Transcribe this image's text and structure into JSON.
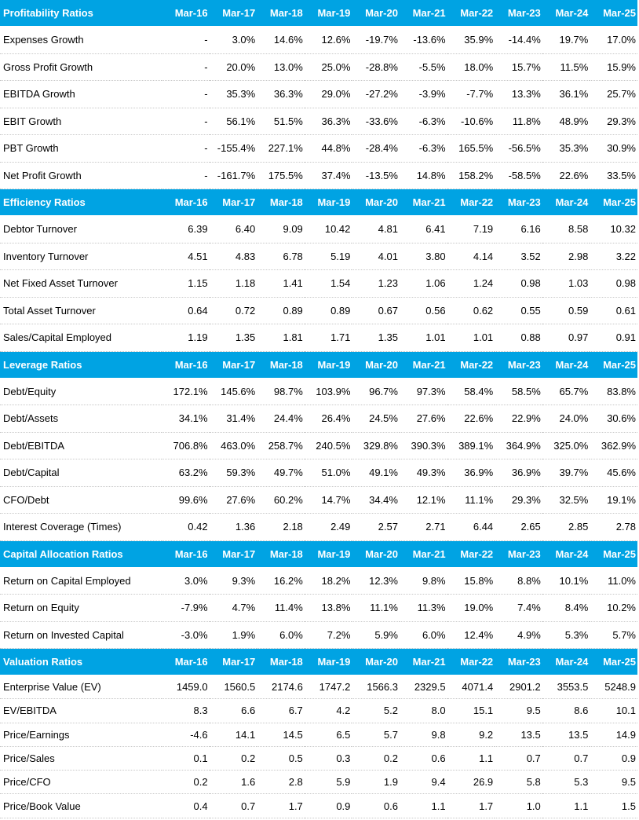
{
  "periods": [
    "Mar-16",
    "Mar-17",
    "Mar-18",
    "Mar-19",
    "Mar-20",
    "Mar-21",
    "Mar-22",
    "Mar-23",
    "Mar-24",
    "Mar-25"
  ],
  "sections": [
    {
      "key": "profitability",
      "title": "Profitability Ratios",
      "row_height": 34.5,
      "rows": [
        {
          "label": "Expenses Growth",
          "values": [
            "-",
            "3.0%",
            "14.6%",
            "12.6%",
            "-19.7%",
            "-13.6%",
            "35.9%",
            "-14.4%",
            "19.7%",
            "17.0%"
          ]
        },
        {
          "label": "Gross Profit Growth",
          "values": [
            "-",
            "20.0%",
            "13.0%",
            "25.0%",
            "-28.8%",
            "-5.5%",
            "18.0%",
            "15.7%",
            "11.5%",
            "15.9%"
          ]
        },
        {
          "label": "EBITDA Growth",
          "values": [
            "-",
            "35.3%",
            "36.3%",
            "29.0%",
            "-27.2%",
            "-3.9%",
            "-7.7%",
            "13.3%",
            "36.1%",
            "25.7%"
          ]
        },
        {
          "label": "EBIT Growth",
          "values": [
            "-",
            "56.1%",
            "51.5%",
            "36.3%",
            "-33.6%",
            "-6.3%",
            "-10.6%",
            "11.8%",
            "48.9%",
            "29.3%"
          ]
        },
        {
          "label": "PBT Growth",
          "values": [
            "-",
            "-155.4%",
            "227.1%",
            "44.8%",
            "-28.4%",
            "-6.3%",
            "165.5%",
            "-56.5%",
            "35.3%",
            "30.9%"
          ]
        },
        {
          "label": "Net Profit Growth",
          "values": [
            "-",
            "-161.7%",
            "175.5%",
            "37.4%",
            "-13.5%",
            "14.8%",
            "158.2%",
            "-58.5%",
            "22.6%",
            "33.5%"
          ]
        }
      ]
    },
    {
      "key": "efficiency",
      "title": "Efficiency Ratios",
      "row_height": 34.5,
      "rows": [
        {
          "label": "Debtor Turnover",
          "values": [
            "6.39",
            "6.40",
            "9.09",
            "10.42",
            "4.81",
            "6.41",
            "7.19",
            "6.16",
            "8.58",
            "10.32"
          ]
        },
        {
          "label": "Inventory Turnover",
          "values": [
            "4.51",
            "4.83",
            "6.78",
            "5.19",
            "4.01",
            "3.80",
            "4.14",
            "3.52",
            "2.98",
            "3.22"
          ]
        },
        {
          "label": "Net Fixed Asset Turnover",
          "values": [
            "1.15",
            "1.18",
            "1.41",
            "1.54",
            "1.23",
            "1.06",
            "1.24",
            "0.98",
            "1.03",
            "0.98"
          ]
        },
        {
          "label": "Total Asset Turnover",
          "values": [
            "0.64",
            "0.72",
            "0.89",
            "0.89",
            "0.67",
            "0.56",
            "0.62",
            "0.55",
            "0.59",
            "0.61"
          ]
        },
        {
          "label": "Sales/Capital Employed",
          "values": [
            "1.19",
            "1.35",
            "1.81",
            "1.71",
            "1.35",
            "1.01",
            "1.01",
            "0.88",
            "0.97",
            "0.91"
          ]
        }
      ]
    },
    {
      "key": "leverage",
      "title": "Leverage Ratios",
      "row_height": 34.5,
      "rows": [
        {
          "label": "Debt/Equity",
          "values": [
            "172.1%",
            "145.6%",
            "98.7%",
            "103.9%",
            "96.7%",
            "97.3%",
            "58.4%",
            "58.5%",
            "65.7%",
            "83.8%"
          ]
        },
        {
          "label": "Debt/Assets",
          "values": [
            "34.1%",
            "31.4%",
            "24.4%",
            "26.4%",
            "24.5%",
            "27.6%",
            "22.6%",
            "22.9%",
            "24.0%",
            "30.6%"
          ]
        },
        {
          "label": "Debt/EBITDA",
          "values": [
            "706.8%",
            "463.0%",
            "258.7%",
            "240.5%",
            "329.8%",
            "390.3%",
            "389.1%",
            "364.9%",
            "325.0%",
            "362.9%"
          ]
        },
        {
          "label": "Debt/Capital",
          "values": [
            "63.2%",
            "59.3%",
            "49.7%",
            "51.0%",
            "49.1%",
            "49.3%",
            "36.9%",
            "36.9%",
            "39.7%",
            "45.6%"
          ]
        },
        {
          "label": "CFO/Debt",
          "values": [
            "99.6%",
            "27.6%",
            "60.2%",
            "14.7%",
            "34.4%",
            "12.1%",
            "11.1%",
            "29.3%",
            "32.5%",
            "19.1%"
          ]
        },
        {
          "label": "Interest Coverage (Times)",
          "values": [
            "0.42",
            "1.36",
            "2.18",
            "2.49",
            "2.57",
            "2.71",
            "6.44",
            "2.65",
            "2.85",
            "2.78"
          ]
        }
      ]
    },
    {
      "key": "capital_allocation",
      "title": "Capital Allocation Ratios",
      "row_height": 34.5,
      "rows": [
        {
          "label": "Return on Capital Employed",
          "values": [
            "3.0%",
            "9.3%",
            "16.2%",
            "18.2%",
            "12.3%",
            "9.8%",
            "15.8%",
            "8.8%",
            "10.1%",
            "11.0%"
          ]
        },
        {
          "label": "Return on Equity",
          "values": [
            "-7.9%",
            "4.7%",
            "11.4%",
            "13.8%",
            "11.1%",
            "11.3%",
            "19.0%",
            "7.4%",
            "8.4%",
            "10.2%"
          ]
        },
        {
          "label": "Return on Invested Capital",
          "values": [
            "-3.0%",
            "1.9%",
            "6.0%",
            "7.2%",
            "5.9%",
            "6.0%",
            "12.4%",
            "4.9%",
            "5.3%",
            "5.7%"
          ]
        }
      ]
    },
    {
      "key": "valuation",
      "title": "Valuation Ratios",
      "row_height": 30.3,
      "rows": [
        {
          "label": "Enterprise Value (EV)",
          "values": [
            "1459.0",
            "1560.5",
            "2174.6",
            "1747.2",
            "1566.3",
            "2329.5",
            "4071.4",
            "2901.2",
            "3553.5",
            "5248.9"
          ]
        },
        {
          "label": "EV/EBITDA",
          "values": [
            "8.3",
            "6.6",
            "6.7",
            "4.2",
            "5.2",
            "8.0",
            "15.1",
            "9.5",
            "8.6",
            "10.1"
          ]
        },
        {
          "label": "Price/Earnings",
          "values": [
            "-4.6",
            "14.1",
            "14.5",
            "6.5",
            "5.7",
            "9.8",
            "9.2",
            "13.5",
            "13.5",
            "14.9"
          ]
        },
        {
          "label": "Price/Sales",
          "values": [
            "0.1",
            "0.2",
            "0.5",
            "0.3",
            "0.2",
            "0.6",
            "1.1",
            "0.7",
            "0.7",
            "0.9"
          ]
        },
        {
          "label": "Price/CFO",
          "values": [
            "0.2",
            "1.6",
            "2.8",
            "5.9",
            "1.9",
            "9.4",
            "26.9",
            "5.8",
            "5.3",
            "9.5"
          ]
        },
        {
          "label": "Price/Book Value",
          "values": [
            "0.4",
            "0.7",
            "1.7",
            "0.9",
            "0.6",
            "1.1",
            "1.7",
            "1.0",
            "1.1",
            "1.5"
          ]
        }
      ]
    }
  ]
}
